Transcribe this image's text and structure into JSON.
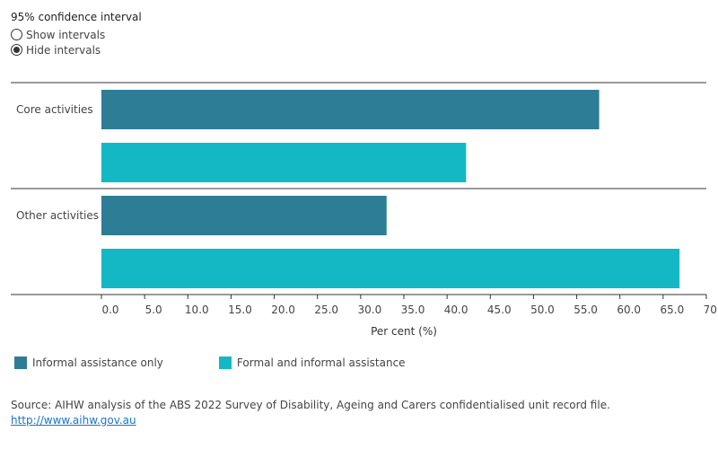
{
  "ci_toggle": {
    "title": "95% confidence interval",
    "options": [
      {
        "label": "Show intervals",
        "selected": false
      },
      {
        "label": "Hide intervals",
        "selected": true
      }
    ]
  },
  "chart_data": {
    "type": "bar",
    "orientation": "horizontal",
    "categories": [
      "Core activities",
      "Other activities"
    ],
    "series": [
      {
        "name": "Informal assistance only",
        "color": "#2e7d96",
        "values": [
          57.6,
          33.0
        ]
      },
      {
        "name": "Formal and informal assistance",
        "color": "#14b8c4",
        "values": [
          42.2,
          66.9
        ]
      }
    ],
    "xlabel": "Per cent (%)",
    "xlim": [
      0,
      70
    ],
    "xticks": [
      "0.0",
      "5.0",
      "10.0",
      "15.0",
      "20.0",
      "25.0",
      "30.0",
      "35.0",
      "40.0",
      "45.0",
      "50.0",
      "55.0",
      "60.0",
      "65.0",
      "70.0"
    ],
    "legend_position": "bottom-left",
    "grid": false
  },
  "source": {
    "text": "Source: AIHW analysis of the ABS 2022 Survey of Disability, Ageing and Carers confidentialised unit record file.",
    "link": "http://www.aihw.gov.au"
  }
}
